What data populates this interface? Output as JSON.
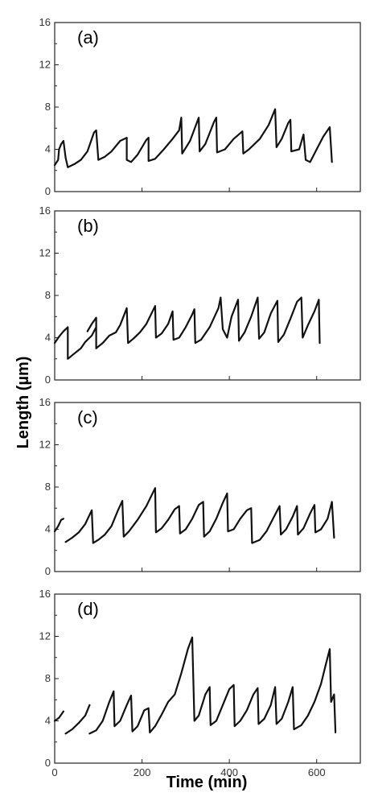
{
  "chart_data": {
    "type": "line",
    "xlabel": "Time (min)",
    "ylabel": "Length (µm)",
    "xlim": [
      0,
      700
    ],
    "ylim": [
      0,
      16
    ],
    "x_ticks": [
      0,
      200,
      400,
      600
    ],
    "x_tick_labels": [
      "0",
      "200",
      "400",
      "600"
    ],
    "y_ticks": [
      0,
      4,
      8,
      12,
      16
    ],
    "y_tick_labels": [
      "0",
      "4",
      "8",
      "12",
      "16"
    ],
    "grid": false,
    "panels": [
      {
        "label": "(a)",
        "segments": [
          [
            [
              0,
              2.5
            ],
            [
              8,
              3.0
            ],
            [
              10,
              4.0
            ],
            [
              15,
              4.5
            ],
            [
              20,
              4.8
            ],
            [
              25,
              3.2
            ],
            [
              30,
              2.3
            ],
            [
              45,
              2.6
            ],
            [
              60,
              3.0
            ],
            [
              75,
              3.8
            ],
            [
              90,
              5.6
            ],
            [
              95,
              5.8
            ],
            [
              100,
              3.0
            ],
            [
              115,
              3.3
            ],
            [
              130,
              3.8
            ],
            [
              150,
              4.8
            ],
            [
              165,
              5.1
            ],
            [
              165,
              3.0
            ],
            [
              175,
              2.8
            ],
            [
              190,
              3.5
            ],
            [
              210,
              4.9
            ],
            [
              215,
              5.1
            ],
            [
              215,
              2.9
            ],
            [
              230,
              3.1
            ],
            [
              250,
              4.0
            ],
            [
              270,
              5.0
            ],
            [
              285,
              5.8
            ],
            [
              290,
              7.0
            ],
            [
              292,
              3.6
            ],
            [
              310,
              4.8
            ],
            [
              330,
              7.0
            ],
            [
              332,
              3.8
            ],
            [
              345,
              4.5
            ],
            [
              365,
              6.6
            ],
            [
              370,
              7.0
            ],
            [
              372,
              3.7
            ],
            [
              390,
              4.0
            ],
            [
              410,
              5.0
            ],
            [
              430,
              5.7
            ],
            [
              432,
              3.6
            ],
            [
              445,
              4.0
            ],
            [
              470,
              5.0
            ],
            [
              490,
              6.3
            ],
            [
              505,
              7.8
            ],
            [
              508,
              4.2
            ],
            [
              520,
              5.0
            ],
            [
              535,
              6.5
            ],
            [
              540,
              6.8
            ],
            [
              542,
              3.8
            ],
            [
              560,
              4.0
            ],
            [
              570,
              5.4
            ],
            [
              575,
              3.0
            ],
            [
              585,
              2.8
            ],
            [
              600,
              4.0
            ],
            [
              615,
              5.2
            ],
            [
              630,
              6.1
            ],
            [
              635,
              2.8
            ]
          ]
        ]
      },
      {
        "label": "(b)",
        "segments": [
          [
            [
              0,
              3.5
            ],
            [
              10,
              4.1
            ],
            [
              20,
              4.6
            ],
            [
              30,
              5.0
            ],
            [
              30,
              2.0
            ],
            [
              45,
              2.5
            ],
            [
              60,
              3.0
            ],
            [
              70,
              3.6
            ],
            [
              85,
              4.2
            ],
            [
              95,
              5.0
            ]
          ],
          [
            [
              75,
              4.6
            ],
            [
              85,
              5.3
            ],
            [
              95,
              5.9
            ],
            [
              95,
              3.0
            ]
          ],
          [
            [
              95,
              3.0
            ],
            [
              110,
              3.5
            ],
            [
              125,
              4.2
            ],
            [
              140,
              4.5
            ],
            [
              150,
              5.2
            ],
            [
              165,
              6.8
            ],
            [
              168,
              3.5
            ],
            [
              180,
              3.9
            ],
            [
              195,
              4.5
            ],
            [
              210,
              5.3
            ],
            [
              230,
              7.0
            ],
            [
              232,
              4.0
            ],
            [
              245,
              4.4
            ],
            [
              260,
              5.3
            ],
            [
              270,
              6.5
            ],
            [
              272,
              3.8
            ],
            [
              285,
              4.0
            ],
            [
              300,
              5.0
            ],
            [
              315,
              6.2
            ],
            [
              320,
              6.7
            ],
            [
              322,
              3.5
            ],
            [
              335,
              3.8
            ],
            [
              355,
              5.0
            ],
            [
              375,
              6.8
            ],
            [
              380,
              7.8
            ],
            [
              385,
              4.8
            ],
            [
              395,
              4.0
            ],
            [
              405,
              6.0
            ],
            [
              420,
              7.6
            ],
            [
              422,
              3.7
            ],
            [
              435,
              4.5
            ],
            [
              450,
              6.0
            ],
            [
              465,
              7.8
            ],
            [
              468,
              3.9
            ],
            [
              480,
              4.5
            ],
            [
              495,
              6.3
            ],
            [
              510,
              7.5
            ],
            [
              512,
              3.6
            ],
            [
              525,
              4.3
            ],
            [
              540,
              5.8
            ],
            [
              555,
              7.4
            ],
            [
              565,
              7.8
            ],
            [
              568,
              4.0
            ],
            [
              580,
              5.2
            ],
            [
              595,
              6.5
            ],
            [
              605,
              7.6
            ],
            [
              607,
              3.5
            ]
          ]
        ]
      },
      {
        "label": "(c)",
        "segments": [
          [
            [
              0,
              3.8
            ],
            [
              8,
              4.3
            ],
            [
              15,
              4.9
            ],
            [
              20,
              5.0
            ]
          ],
          [
            [
              25,
              2.8
            ],
            [
              40,
              3.2
            ],
            [
              55,
              3.7
            ],
            [
              70,
              4.5
            ],
            [
              85,
              5.8
            ],
            [
              88,
              2.7
            ],
            [
              100,
              3.0
            ],
            [
              115,
              3.5
            ],
            [
              130,
              4.3
            ],
            [
              145,
              5.8
            ],
            [
              155,
              6.7
            ],
            [
              158,
              3.3
            ],
            [
              170,
              3.8
            ],
            [
              190,
              4.9
            ],
            [
              210,
              6.2
            ],
            [
              230,
              7.9
            ],
            [
              232,
              3.7
            ],
            [
              245,
              4.1
            ],
            [
              260,
              4.9
            ],
            [
              275,
              5.9
            ],
            [
              285,
              6.2
            ],
            [
              287,
              3.6
            ],
            [
              300,
              4.0
            ],
            [
              315,
              5.0
            ],
            [
              330,
              6.3
            ],
            [
              340,
              6.6
            ],
            [
              342,
              3.3
            ],
            [
              355,
              3.8
            ],
            [
              370,
              5.0
            ],
            [
              385,
              6.5
            ],
            [
              395,
              7.4
            ],
            [
              397,
              3.8
            ],
            [
              410,
              4.0
            ],
            [
              425,
              5.0
            ],
            [
              440,
              5.8
            ],
            [
              450,
              6.0
            ],
            [
              452,
              2.7
            ],
            [
              470,
              3.0
            ],
            [
              485,
              3.8
            ],
            [
              500,
              5.0
            ],
            [
              515,
              6.2
            ],
            [
              518,
              3.5
            ],
            [
              530,
              4.0
            ],
            [
              545,
              5.2
            ],
            [
              555,
              6.2
            ],
            [
              557,
              3.5
            ],
            [
              570,
              4.1
            ],
            [
              585,
              5.5
            ],
            [
              595,
              6.3
            ],
            [
              597,
              3.7
            ],
            [
              610,
              4.0
            ],
            [
              625,
              5.0
            ],
            [
              635,
              6.6
            ],
            [
              640,
              3.2
            ]
          ]
        ]
      },
      {
        "label": "(d)",
        "segments": [
          [
            [
              0,
              4.0
            ],
            [
              10,
              4.3
            ],
            [
              20,
              4.9
            ]
          ],
          [
            [
              25,
              2.8
            ],
            [
              40,
              3.2
            ],
            [
              55,
              3.8
            ],
            [
              70,
              4.5
            ],
            [
              80,
              5.5
            ]
          ],
          [
            [
              80,
              2.8
            ],
            [
              95,
              3.1
            ],
            [
              110,
              4.0
            ],
            [
              125,
              5.8
            ],
            [
              135,
              6.8
            ],
            [
              137,
              3.5
            ],
            [
              150,
              4.0
            ],
            [
              165,
              5.5
            ],
            [
              175,
              6.4
            ],
            [
              178,
              3.0
            ],
            [
              190,
              3.5
            ],
            [
              205,
              5.0
            ],
            [
              215,
              5.2
            ],
            [
              218,
              2.9
            ],
            [
              230,
              3.5
            ],
            [
              245,
              4.6
            ],
            [
              260,
              5.8
            ],
            [
              275,
              6.5
            ],
            [
              290,
              8.5
            ],
            [
              305,
              10.8
            ],
            [
              315,
              11.9
            ],
            [
              320,
              4.0
            ],
            [
              330,
              4.5
            ],
            [
              345,
              6.5
            ],
            [
              355,
              7.2
            ],
            [
              357,
              3.6
            ],
            [
              370,
              4.0
            ],
            [
              385,
              5.5
            ],
            [
              400,
              7.0
            ],
            [
              410,
              7.4
            ],
            [
              412,
              3.5
            ],
            [
              425,
              4.0
            ],
            [
              440,
              5.0
            ],
            [
              455,
              6.5
            ],
            [
              465,
              7.1
            ],
            [
              467,
              3.7
            ],
            [
              480,
              4.2
            ],
            [
              495,
              5.5
            ],
            [
              505,
              7.2
            ],
            [
              508,
              3.7
            ],
            [
              520,
              4.2
            ],
            [
              535,
              5.8
            ],
            [
              545,
              7.2
            ],
            [
              548,
              3.2
            ],
            [
              565,
              3.6
            ],
            [
              580,
              4.5
            ],
            [
              595,
              5.8
            ],
            [
              610,
              7.5
            ],
            [
              620,
              9.2
            ],
            [
              630,
              10.8
            ],
            [
              633,
              5.8
            ],
            [
              640,
              6.5
            ],
            [
              643,
              2.9
            ]
          ]
        ]
      }
    ]
  }
}
